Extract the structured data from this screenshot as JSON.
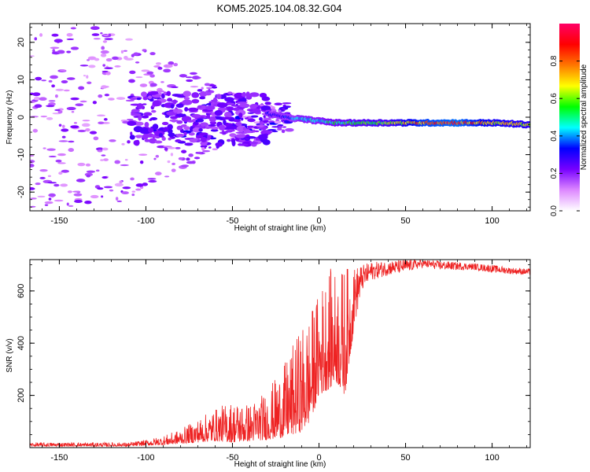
{
  "title": "KOM5.2025.104.08.32.G04",
  "chart_data": [
    {
      "type": "heatmap",
      "xlabel": "Height of straight line (km)",
      "ylabel": "Frequency (Hz)",
      "xlim": [
        -167,
        122
      ],
      "ylim": [
        -25,
        25
      ],
      "xticks": [
        -150,
        -100,
        -50,
        0,
        50,
        100
      ],
      "yticks": [
        -20,
        -10,
        0,
        10,
        20
      ],
      "ridge": {
        "x": [
          -30,
          -20,
          -10,
          0,
          10,
          20,
          40,
          60,
          80,
          100,
          122
        ],
        "frequency": [
          1,
          0,
          -0.5,
          -1,
          -1.5,
          -1.5,
          -1.5,
          -1.5,
          -1.5,
          -1.5,
          -2
        ],
        "amplitude": [
          0.3,
          0.3,
          0.45,
          0.45,
          0.5,
          0.55,
          0.6,
          0.8,
          0.85,
          0.7,
          0.65
        ]
      },
      "scatter_blobs_note": "low-amplitude (0.0-0.25) patches spread across -167 to -20 km"
    },
    {
      "type": "colorbar",
      "label": "Normalized spectral amplitude",
      "range": [
        0,
        1
      ],
      "ticks": [
        "0.0",
        "0.2",
        "0.4",
        "0.6",
        "0.8"
      ],
      "tick_values": [
        0,
        0.2,
        0.4,
        0.6,
        0.8
      ],
      "colors": [
        "#ffffff",
        "#dd88ff",
        "#7700ff",
        "#0000ff",
        "#00ffff",
        "#00ff00",
        "#ffff00",
        "#ff7700",
        "#ff0000",
        "#ff0066"
      ]
    },
    {
      "type": "line",
      "xlabel": "Height of straight line (km)",
      "ylabel": "SNR (v/v)",
      "xlim": [
        -167,
        122
      ],
      "ylim": [
        0,
        720
      ],
      "xticks": [
        -150,
        -100,
        -50,
        0,
        50,
        100
      ],
      "yticks": [
        200,
        400,
        600
      ],
      "color": "#ee2222",
      "envelope": {
        "x": [
          -167,
          -110,
          -100,
          -90,
          -80,
          -70,
          -60,
          -50,
          -40,
          -30,
          -20,
          -10,
          -5,
          0,
          5,
          10,
          15,
          20,
          25,
          30,
          40,
          50,
          60,
          70,
          80,
          90,
          100,
          110,
          122
        ],
        "low": [
          5,
          5,
          8,
          10,
          15,
          20,
          25,
          20,
          25,
          30,
          40,
          60,
          100,
          200,
          220,
          250,
          200,
          450,
          600,
          640,
          660,
          670,
          690,
          680,
          680,
          680,
          670,
          665,
          660
        ],
        "high": [
          20,
          20,
          30,
          45,
          70,
          110,
          150,
          180,
          170,
          220,
          320,
          470,
          520,
          600,
          690,
          680,
          700,
          690,
          700,
          710,
          715,
          720,
          720,
          715,
          710,
          705,
          700,
          690,
          685
        ]
      }
    }
  ]
}
